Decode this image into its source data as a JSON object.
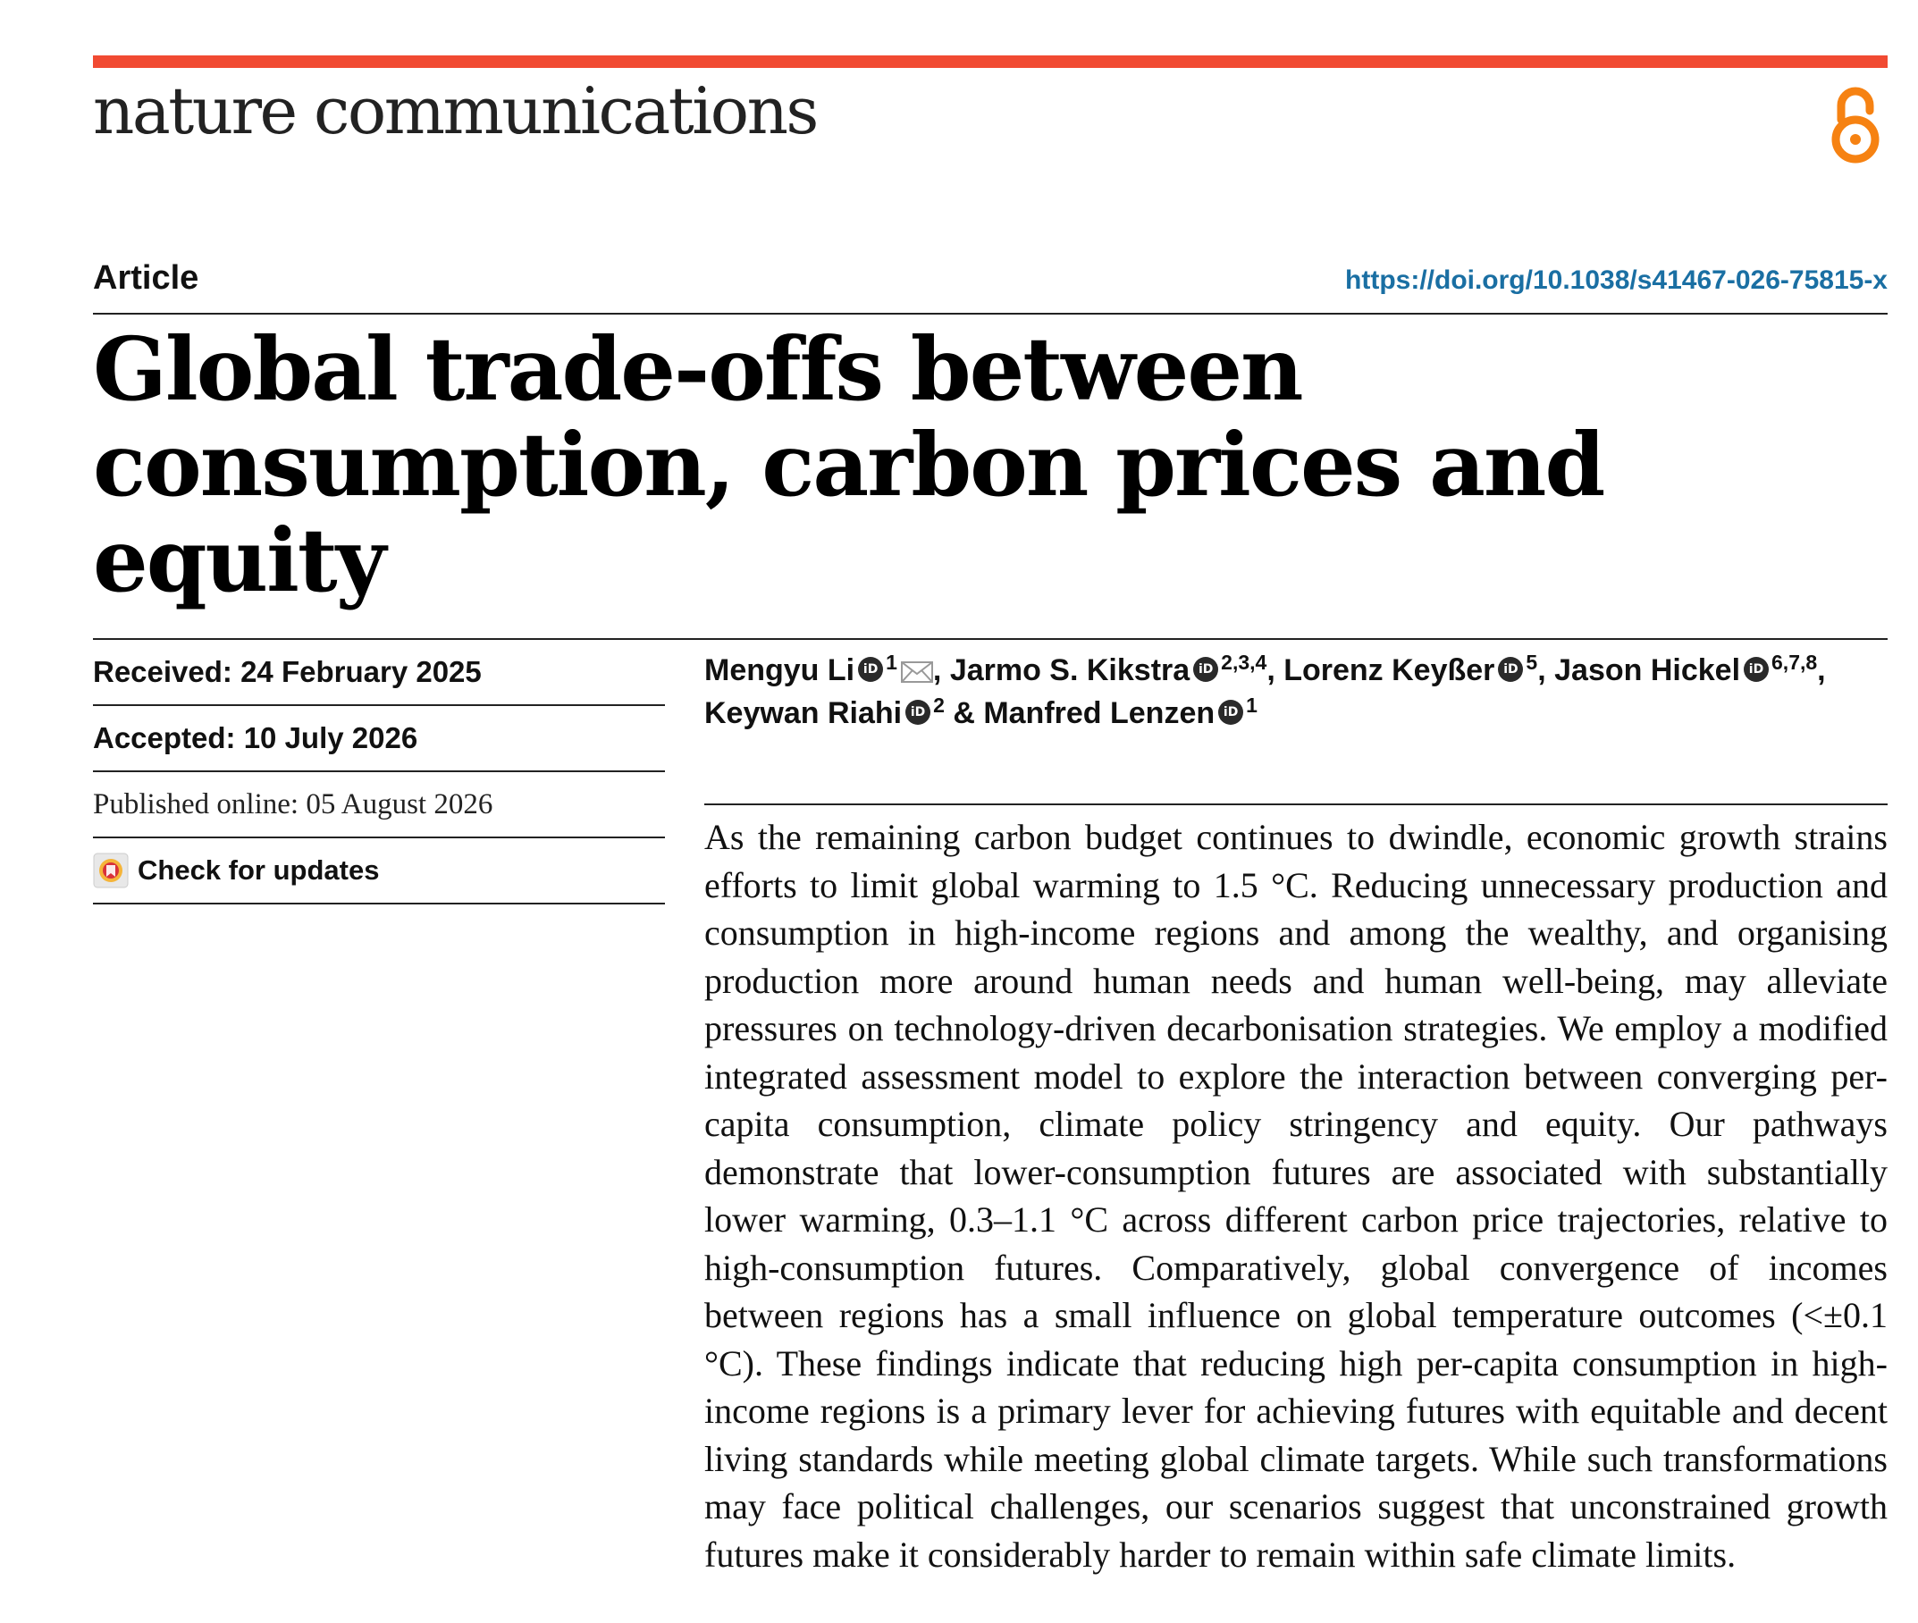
{
  "journal": {
    "name": "nature communications",
    "accent_color": "#f14a32",
    "open_access_icon": "open-access-lock-icon",
    "open_access_color": "#f68212"
  },
  "article": {
    "type": "Article",
    "doi": "https://doi.org/10.1038/s41467-026-75815-x",
    "title": "Global trade-offs between consumption, carbon prices and equity"
  },
  "dates": {
    "received": "Received: 24 February 2025",
    "accepted": "Accepted: 10 July 2026",
    "published": "Published online: 05 August 2026",
    "check_updates": "Check for updates"
  },
  "authors": [
    {
      "name": "Mengyu Li",
      "affiliations": "1",
      "corresponding": true,
      "separator": ","
    },
    {
      "name": "Jarmo S. Kikstra",
      "affiliations": "2,3,4",
      "corresponding": false,
      "separator": ","
    },
    {
      "name": "Lorenz Keyßer",
      "affiliations": "5",
      "corresponding": false,
      "separator": ","
    },
    {
      "name": "Jason Hickel",
      "affiliations": "6,7,8",
      "corresponding": false,
      "separator": ","
    },
    {
      "name": "Keywan Riahi",
      "affiliations": "2",
      "corresponding": false,
      "separator": "&"
    },
    {
      "name": "Manfred Lenzen",
      "affiliations": "1",
      "corresponding": false,
      "separator": ""
    }
  ],
  "abstract": "As the remaining carbon budget continues to dwindle, economic growth strains efforts to limit global warming to 1.5 °C. Reducing unnecessary production and consumption in high-income regions and among the wealthy, and organising production more around human needs and human well-being, may alleviate pressures on technology-driven decarbonisation strategies. We employ a modified integrated assessment model to explore the interaction between converging per-capita consumption, climate policy stringency and equity. Our pathways demonstrate that lower-consumption futures are associated with substantially lower warming, 0.3–1.1 °C across different carbon price trajectories, relative to high-consumption futures. Comparatively, global convergence of incomes between regions has a small influence on global temperature outcomes (<±0.1 °C). These findings indicate that reducing high per-capita consumption in high-income regions is a primary lever for achieving futures with equitable and decent living standards while meeting global climate targets. While such transformations may face political challenges, our scenarios suggest that unconstrained growth futures make it considerably harder to remain within safe climate limits."
}
